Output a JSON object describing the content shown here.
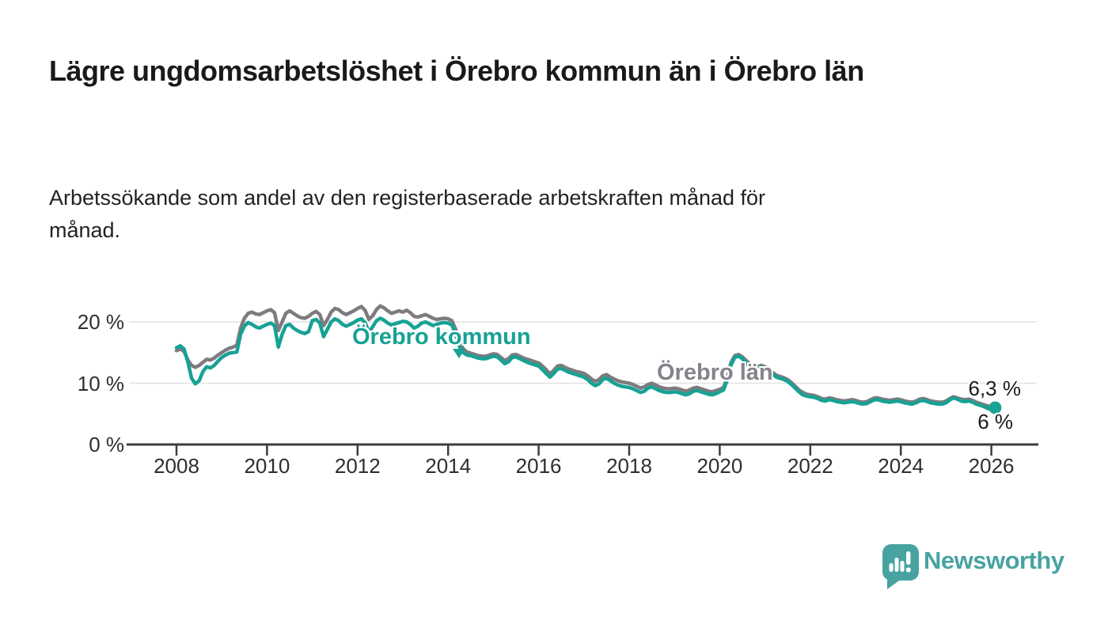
{
  "header": {
    "title": "Lägre ungdomsarbetslöshet i Örebro kommun än i Örebro län",
    "subtitle": "Arbetssökande som andel av den registerbaserade arbetskraften månad för månad."
  },
  "branding": {
    "logo_text": "Newsworthy",
    "brand_color": "#48a3a0"
  },
  "colors": {
    "kommun_line": "#16a294",
    "lan_line": "#7d7b80",
    "grid": "#e2e2e2",
    "axis": "#3d3d3d",
    "text": "#1a1a1a"
  },
  "chart_data": {
    "type": "line",
    "unit": "%",
    "x_start_year": 2008,
    "x_start_month": 1,
    "x_end_year": 2026,
    "x_end_month": 2,
    "frequency": "monthly",
    "xlim": [
      2007.0,
      2027.0
    ],
    "ylim": [
      0,
      24
    ],
    "grid": "horizontal",
    "x_ticks": [
      "2008",
      "2010",
      "2012",
      "2014",
      "2016",
      "2018",
      "2020",
      "2022",
      "2024",
      "2026"
    ],
    "y_ticks": [
      {
        "value": 0,
        "label": "0 %"
      },
      {
        "value": 10,
        "label": "10 %"
      },
      {
        "value": 20,
        "label": "20 %"
      }
    ],
    "series": [
      {
        "name": "Örebro län",
        "color": "#7d7b80",
        "end_label": "6,3 %",
        "end_dot": false,
        "values": [
          15.3,
          15.6,
          15.2,
          13.8,
          12.9,
          12.6,
          12.9,
          13.4,
          13.9,
          13.8,
          14.1,
          14.6,
          15.0,
          15.4,
          15.7,
          15.9,
          16.2,
          19.0,
          20.6,
          21.4,
          21.6,
          21.3,
          21.2,
          21.5,
          21.8,
          22.0,
          21.5,
          18.6,
          20.0,
          21.4,
          21.8,
          21.4,
          21.0,
          20.7,
          20.6,
          20.9,
          21.4,
          21.7,
          21.2,
          19.4,
          20.4,
          21.6,
          22.2,
          22.0,
          21.5,
          21.2,
          21.5,
          21.8,
          22.2,
          22.5,
          21.9,
          20.4,
          21.0,
          22.0,
          22.6,
          22.3,
          21.8,
          21.4,
          21.6,
          21.8,
          21.6,
          21.9,
          21.5,
          20.9,
          20.8,
          21.0,
          21.2,
          20.9,
          20.6,
          20.4,
          20.5,
          20.6,
          20.5,
          20.2,
          18.8,
          16.8,
          15.6,
          15.1,
          14.9,
          14.7,
          14.5,
          14.4,
          14.4,
          14.6,
          14.8,
          14.7,
          14.2,
          13.7,
          14.0,
          14.6,
          14.7,
          14.4,
          14.1,
          13.9,
          13.7,
          13.5,
          13.3,
          12.8,
          12.2,
          11.5,
          12.1,
          12.8,
          12.9,
          12.6,
          12.3,
          12.1,
          11.9,
          11.8,
          11.6,
          11.2,
          10.7,
          10.3,
          10.6,
          11.2,
          11.4,
          11.0,
          10.7,
          10.4,
          10.2,
          10.1,
          10.0,
          9.8,
          9.5,
          9.2,
          9.4,
          9.8,
          10.0,
          9.7,
          9.4,
          9.2,
          9.1,
          9.1,
          9.2,
          9.1,
          8.9,
          8.7,
          8.9,
          9.2,
          9.3,
          9.1,
          8.9,
          8.7,
          8.6,
          8.8,
          9.0,
          9.3,
          10.9,
          13.4,
          14.5,
          14.7,
          14.3,
          13.7,
          13.1,
          12.7,
          12.7,
          12.9,
          12.7,
          12.3,
          11.8,
          11.3,
          11.1,
          10.9,
          10.6,
          10.1,
          9.5,
          8.9,
          8.5,
          8.2,
          8.1,
          8.0,
          7.8,
          7.5,
          7.4,
          7.6,
          7.5,
          7.3,
          7.2,
          7.1,
          7.2,
          7.3,
          7.2,
          7.0,
          6.9,
          7.0,
          7.3,
          7.6,
          7.6,
          7.4,
          7.3,
          7.2,
          7.3,
          7.4,
          7.3,
          7.1,
          7.0,
          6.9,
          7.1,
          7.4,
          7.5,
          7.3,
          7.1,
          7.0,
          6.9,
          6.9,
          7.1,
          7.5,
          7.8,
          7.6,
          7.4,
          7.3,
          7.4,
          7.2,
          6.9,
          6.7,
          6.5,
          6.3,
          6.2,
          6.3
        ]
      },
      {
        "name": "Örebro kommun",
        "color": "#16a294",
        "end_label": "6 %",
        "end_dot": true,
        "values": [
          15.8,
          16.1,
          15.6,
          13.5,
          10.8,
          9.9,
          10.4,
          11.9,
          12.7,
          12.5,
          12.9,
          13.6,
          14.2,
          14.6,
          14.9,
          15.0,
          15.1,
          18.0,
          19.3,
          19.9,
          19.6,
          19.2,
          19.0,
          19.3,
          19.6,
          19.8,
          19.4,
          15.9,
          18.0,
          19.4,
          19.6,
          19.0,
          18.6,
          18.3,
          18.1,
          18.4,
          20.2,
          20.4,
          19.8,
          17.6,
          18.8,
          20.0,
          20.5,
          20.2,
          19.6,
          19.3,
          19.6,
          19.9,
          20.3,
          20.5,
          19.9,
          18.4,
          19.2,
          20.2,
          20.6,
          20.3,
          19.8,
          19.5,
          19.7,
          19.9,
          20.1,
          20.0,
          19.6,
          19.0,
          19.3,
          19.8,
          20.0,
          19.7,
          19.4,
          19.6,
          19.8,
          19.9,
          19.8,
          19.5,
          18.0,
          16.0,
          15.0,
          14.6,
          14.5,
          14.3,
          14.1,
          14.0,
          14.0,
          14.2,
          14.4,
          14.3,
          13.8,
          13.2,
          13.5,
          14.2,
          14.3,
          14.0,
          13.7,
          13.4,
          13.2,
          13.0,
          12.8,
          12.2,
          11.6,
          11.0,
          11.6,
          12.3,
          12.4,
          12.1,
          11.8,
          11.6,
          11.4,
          11.2,
          11.0,
          10.6,
          10.0,
          9.6,
          9.9,
          10.6,
          10.8,
          10.4,
          10.0,
          9.7,
          9.5,
          9.4,
          9.3,
          9.1,
          8.8,
          8.5,
          8.7,
          9.2,
          9.4,
          9.1,
          8.8,
          8.6,
          8.5,
          8.5,
          8.6,
          8.5,
          8.3,
          8.1,
          8.3,
          8.7,
          8.8,
          8.6,
          8.4,
          8.2,
          8.1,
          8.3,
          8.6,
          8.9,
          10.5,
          13.0,
          14.2,
          14.4,
          14.0,
          13.3,
          12.7,
          12.3,
          12.4,
          12.6,
          12.4,
          12.0,
          11.5,
          11.0,
          10.8,
          10.6,
          10.3,
          9.8,
          9.2,
          8.6,
          8.1,
          7.9,
          7.8,
          7.7,
          7.5,
          7.2,
          7.1,
          7.3,
          7.2,
          7.0,
          6.9,
          6.8,
          6.9,
          7.0,
          6.9,
          6.7,
          6.6,
          6.7,
          7.0,
          7.3,
          7.3,
          7.1,
          7.0,
          6.9,
          7.0,
          7.1,
          7.0,
          6.8,
          6.7,
          6.6,
          6.8,
          7.1,
          7.2,
          7.0,
          6.8,
          6.7,
          6.6,
          6.6,
          6.8,
          7.3,
          7.6,
          7.4,
          7.1,
          7.0,
          7.1,
          6.9,
          6.6,
          6.4,
          6.2,
          5.9,
          5.7,
          6.0
        ]
      }
    ]
  }
}
